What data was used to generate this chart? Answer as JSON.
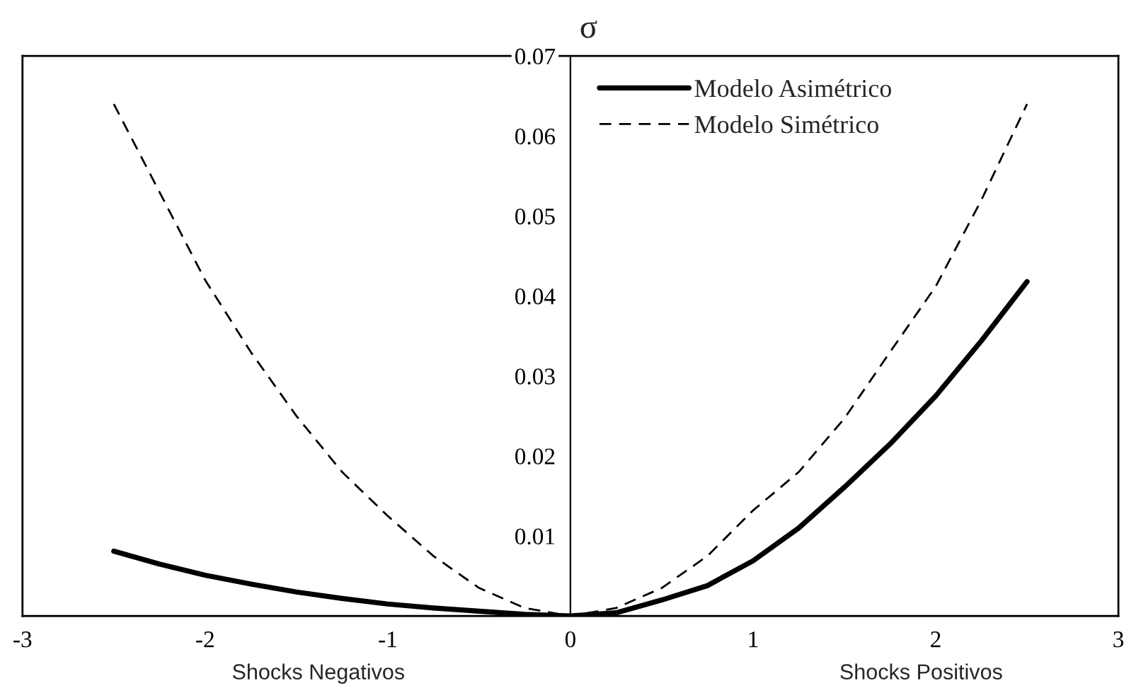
{
  "chart_data": {
    "type": "line",
    "ylabel": "σ",
    "x": [
      -2.5,
      -2.25,
      -2,
      -1.75,
      -1.5,
      -1.25,
      -1,
      -0.75,
      -0.5,
      -0.25,
      0,
      0.25,
      0.5,
      0.75,
      1,
      1.25,
      1.5,
      1.75,
      2,
      2.25,
      2.5
    ],
    "series": [
      {
        "name": "Modelo Asimétrico",
        "color": "#000000",
        "line_style": "solid",
        "values": [
          0.0081,
          0.0065,
          0.0051,
          0.004,
          0.003,
          0.0022,
          0.0015,
          0.001,
          0.0006,
          0.0002,
          0,
          0.0004,
          0.002,
          0.0038,
          0.0069,
          0.011,
          0.0161,
          0.0215,
          0.0275,
          0.0344,
          0.0418
        ]
      },
      {
        "name": "Modelo Simétrico",
        "color": "#000000",
        "line_style": "dashed",
        "values": [
          0.064,
          0.053,
          0.042,
          0.033,
          0.025,
          0.018,
          0.0125,
          0.0075,
          0.0035,
          0.001,
          0,
          0.001,
          0.0035,
          0.0075,
          0.0132,
          0.018,
          0.0247,
          0.033,
          0.0412,
          0.052,
          0.064
        ]
      }
    ],
    "xlim": [
      -3,
      3
    ],
    "xticks": [
      -3,
      -2,
      -1,
      0,
      1,
      2,
      3
    ],
    "ylim": [
      0,
      0.07
    ],
    "yticks": [
      0.01,
      0.02,
      0.03,
      0.04,
      0.05,
      0.06,
      0.07
    ],
    "grid": false,
    "legend": "top",
    "marker": "none",
    "annotations": [
      "Shocks Negativos",
      "Shocks Positivos"
    ]
  }
}
